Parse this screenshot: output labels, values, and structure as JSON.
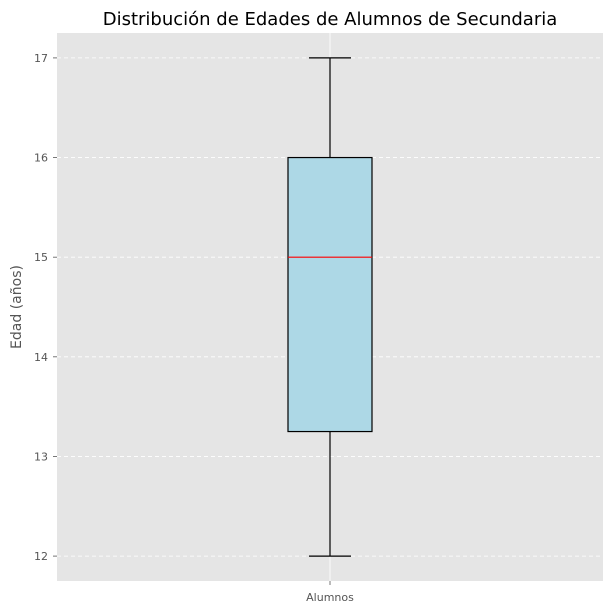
{
  "chart_data": {
    "type": "box",
    "title": "Distribución de Edades de Alumnos de Secundaria",
    "xlabel": "",
    "ylabel": "Edad (años)",
    "categories": [
      "Alumnos"
    ],
    "boxes": [
      {
        "category": "Alumnos",
        "min": 12,
        "q1": 13.25,
        "median": 15,
        "q3": 16,
        "max": 17
      }
    ],
    "ylim": [
      11.75,
      17.25
    ],
    "yticks": [
      12,
      13,
      14,
      15,
      16,
      17
    ],
    "grid": true,
    "colors": {
      "background": "#e5e5e5",
      "box_fill": "#add8e6",
      "median": "#ff0000",
      "grid": "#ffffff",
      "lines": "#000000"
    }
  }
}
